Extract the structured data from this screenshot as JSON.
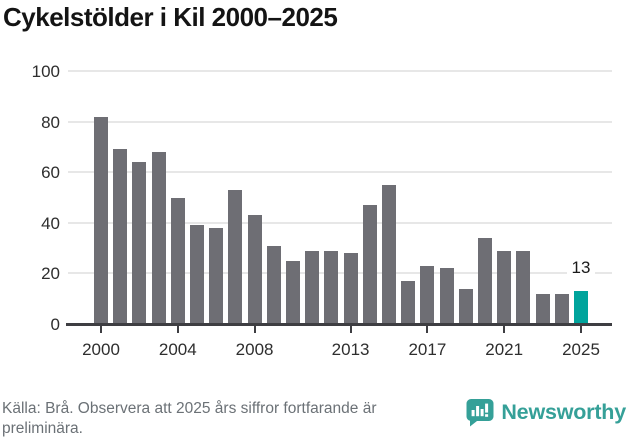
{
  "title": "Cykelstölder i Kil 2000–2025",
  "chart_data": {
    "type": "bar",
    "title": "Cykelstölder i Kil 2000–2025",
    "x": [
      2000,
      2001,
      2002,
      2003,
      2004,
      2005,
      2006,
      2007,
      2008,
      2009,
      2010,
      2011,
      2012,
      2013,
      2014,
      2015,
      2016,
      2017,
      2018,
      2019,
      2020,
      2021,
      2022,
      2023,
      2024,
      2025
    ],
    "values": [
      82,
      69,
      64,
      68,
      50,
      39,
      38,
      53,
      43,
      31,
      25,
      29,
      29,
      28,
      47,
      55,
      17,
      23,
      22,
      14,
      34,
      29,
      29,
      12,
      12,
      13
    ],
    "xtick_labels": [
      "2000",
      "2004",
      "2008",
      "2013",
      "2017",
      "2021",
      "2025"
    ],
    "ytick_labels": [
      "0",
      "20",
      "40",
      "60",
      "80",
      "100"
    ],
    "ylim": [
      0,
      100
    ],
    "grid": true,
    "legend": "none",
    "bar_color": "#6e6e74",
    "highlight_color": "#00a49c",
    "highlight_year": 2025,
    "highlight_label": "13"
  },
  "footer": {
    "source_note": "Källa: Brå. Observera att 2025 års siffror fortfarande är preliminära."
  },
  "branding": {
    "name": "Newsworthy",
    "color": "#35a098",
    "icon": "newsworthy-chart-bubble-icon"
  }
}
